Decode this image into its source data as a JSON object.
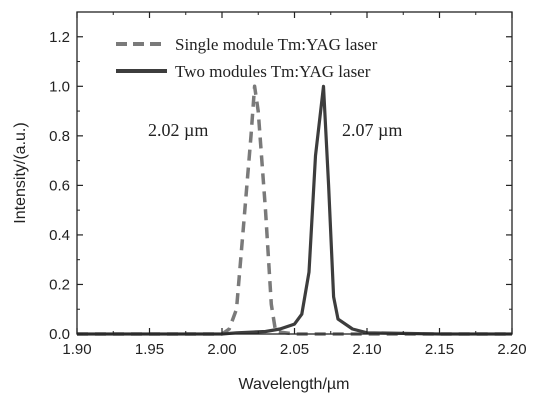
{
  "chart_data": {
    "type": "line",
    "xlabel": "Wavelength/µm",
    "ylabel": "Intensity/(a.u.)",
    "xlim": [
      1.9,
      2.2
    ],
    "ylim": [
      0.0,
      1.3
    ],
    "xticks": [
      "1.90",
      "1.95",
      "2.00",
      "2.05",
      "2.10",
      "2.15",
      "2.20"
    ],
    "yticks": [
      "0.0",
      "0.2",
      "0.4",
      "0.6",
      "0.8",
      "1.0",
      "1.2"
    ],
    "legend_position": "top",
    "grid": false,
    "annotations": [
      "2.02 µm",
      "2.07 µm"
    ],
    "series": [
      {
        "name": "Single module Tm:YAG laser",
        "style": "dashed",
        "color": "#7a7a7a",
        "points": [
          [
            1.9,
            0.0
          ],
          [
            1.95,
            0.0
          ],
          [
            2.0,
            0.0
          ],
          [
            2.005,
            0.02
          ],
          [
            2.01,
            0.1
          ],
          [
            2.015,
            0.45
          ],
          [
            2.02,
            0.8
          ],
          [
            2.0225,
            1.0
          ],
          [
            2.025,
            0.9
          ],
          [
            2.03,
            0.5
          ],
          [
            2.034,
            0.12
          ],
          [
            2.037,
            0.01
          ],
          [
            2.05,
            0.0
          ],
          [
            2.1,
            0.0
          ],
          [
            2.2,
            0.0
          ]
        ]
      },
      {
        "name": "Two modules Tm:YAG laser",
        "style": "solid",
        "color": "#3d3d3d",
        "points": [
          [
            1.9,
            0.0
          ],
          [
            1.95,
            0.0
          ],
          [
            2.0,
            0.0
          ],
          [
            2.01,
            0.005
          ],
          [
            2.03,
            0.01
          ],
          [
            2.04,
            0.02
          ],
          [
            2.05,
            0.04
          ],
          [
            2.055,
            0.08
          ],
          [
            2.06,
            0.25
          ],
          [
            2.0645,
            0.72
          ],
          [
            2.07,
            1.0
          ],
          [
            2.0735,
            0.6
          ],
          [
            2.077,
            0.15
          ],
          [
            2.08,
            0.06
          ],
          [
            2.09,
            0.02
          ],
          [
            2.1,
            0.005
          ],
          [
            2.15,
            0.0
          ],
          [
            2.2,
            0.0
          ]
        ]
      }
    ]
  }
}
